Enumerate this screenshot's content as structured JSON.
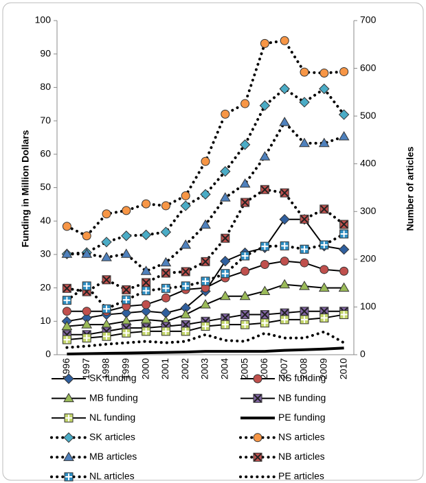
{
  "chart_data": {
    "type": "line",
    "y_label": "Funding in Million Dollars",
    "y2_label": "Number of articles",
    "categories": [
      "1996",
      "1997",
      "1998",
      "1999",
      "2000",
      "2001",
      "2002",
      "2003",
      "2004",
      "2005",
      "2006",
      "2007",
      "2008",
      "2009",
      "2010"
    ],
    "ylim": [
      0,
      100
    ],
    "yticks": [
      0,
      10,
      20,
      30,
      40,
      50,
      60,
      70,
      80,
      90,
      100
    ],
    "y2lim": [
      0,
      700
    ],
    "y2ticks": [
      0,
      100,
      200,
      300,
      400,
      500,
      600,
      700
    ],
    "legend": "bottom",
    "series": [
      {
        "name": "SK funding",
        "color": "#2f5f9e",
        "marker": "diamond",
        "line": "solid",
        "values": [
          10,
          11,
          12,
          12.5,
          13,
          12.5,
          14,
          19,
          28,
          30.5,
          32,
          40.5,
          40.5,
          32.5,
          31.5
        ]
      },
      {
        "name": "NS funding",
        "color": "#c0504d",
        "marker": "circle",
        "line": "solid",
        "values": [
          13,
          13,
          13,
          14.5,
          15,
          17,
          19.5,
          20,
          23,
          25,
          27,
          28,
          27.5,
          25.5,
          25
        ]
      },
      {
        "name": "MB funding",
        "color": "#9bbb59",
        "marker": "triangle",
        "line": "solid",
        "values": [
          8.5,
          9,
          9,
          10,
          10.5,
          10,
          12,
          15,
          17.5,
          17.5,
          19,
          21,
          20.5,
          20,
          20
        ]
      },
      {
        "name": "NB funding",
        "color": "#8064a2",
        "marker": "xsquare",
        "line": "solid",
        "values": [
          6,
          6,
          7,
          8,
          8,
          8.5,
          9,
          10,
          11,
          12,
          12,
          12.5,
          13,
          13,
          13
        ]
      },
      {
        "name": "NL funding",
        "color": "#c4d66b",
        "marker": "plus",
        "line": "solid",
        "values": [
          4.5,
          5,
          5.5,
          6.5,
          7,
          7,
          7,
          8.5,
          9,
          9,
          9.5,
          10.5,
          10.5,
          11,
          12
        ]
      },
      {
        "name": "PE funding",
        "color": "#000000",
        "marker": "none",
        "line": "thick",
        "values": [
          0.2,
          0.3,
          0.4,
          0.5,
          0.6,
          0.7,
          0.8,
          1,
          1,
          1,
          1,
          1.3,
          1.5,
          1.7,
          2
        ]
      },
      {
        "name": "SK articles",
        "color": "#4bacc6",
        "marker": "diamond",
        "line": "dotted",
        "axis": "y2",
        "values": [
          211,
          214,
          236,
          249,
          251,
          257,
          312,
          336,
          384,
          440,
          522,
          557,
          529,
          557,
          503
        ]
      },
      {
        "name": "NS articles",
        "color": "#f79646",
        "marker": "circle",
        "line": "dotted",
        "axis": "y2",
        "values": [
          269,
          249,
          295,
          302,
          316,
          312,
          333,
          405,
          504,
          526,
          652,
          658,
          592,
          590,
          593
        ]
      },
      {
        "name": "MB articles",
        "color": "#4f81bd",
        "marker": "triangle",
        "line": "dotted",
        "axis": "y2",
        "values": [
          211,
          211,
          204,
          211,
          175,
          193,
          230,
          272,
          329,
          358,
          415,
          487,
          443,
          443,
          457
        ]
      },
      {
        "name": "NB articles",
        "color": "#c0504d",
        "marker": "xsquare",
        "line": "dotted",
        "axis": "y2",
        "values": [
          139,
          132,
          157,
          136,
          151,
          171,
          174,
          195,
          244,
          319,
          346,
          339,
          284,
          305,
          273
        ]
      },
      {
        "name": "NL articles",
        "color": "#2e8fc4",
        "marker": "plus",
        "line": "dotted",
        "axis": "y2",
        "values": [
          114,
          144,
          96,
          115,
          134,
          139,
          144,
          154,
          170,
          207,
          227,
          228,
          221,
          230,
          253
        ]
      },
      {
        "name": "PE articles",
        "color": "#000000",
        "marker": "none",
        "line": "dotted",
        "axis": "y2",
        "values": [
          15,
          18,
          22,
          25,
          28,
          25,
          28,
          42,
          30,
          28,
          45,
          35,
          35,
          48,
          25
        ]
      }
    ]
  }
}
